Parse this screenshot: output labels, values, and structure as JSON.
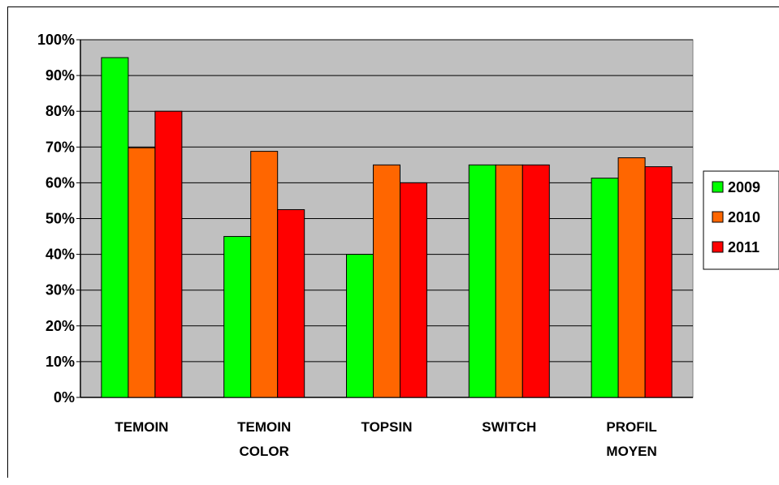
{
  "chart_data": {
    "type": "bar",
    "categories": [
      [
        "TEMOIN"
      ],
      [
        "TEMOIN",
        "COLOR"
      ],
      [
        "TOPSIN"
      ],
      [
        "SWITCH"
      ],
      [
        "PROFIL",
        "MOYEN"
      ]
    ],
    "series": [
      {
        "name": "2009",
        "color": "#00ff00",
        "values": [
          95,
          45,
          40,
          65,
          61.3
        ]
      },
      {
        "name": "2010",
        "color": "#ff6600",
        "values": [
          69.8,
          68.8,
          65,
          65,
          67
        ]
      },
      {
        "name": "2011",
        "color": "#ff0000",
        "values": [
          80,
          52.5,
          60,
          65,
          64.5
        ]
      }
    ],
    "ylim": [
      0,
      100
    ],
    "y_ticks": [
      "0%",
      "10%",
      "20%",
      "30%",
      "40%",
      "50%",
      "60%",
      "70%",
      "80%",
      "90%",
      "100%"
    ],
    "grid": true,
    "plot_background": "#c0c0c0",
    "legend_position": "right"
  }
}
